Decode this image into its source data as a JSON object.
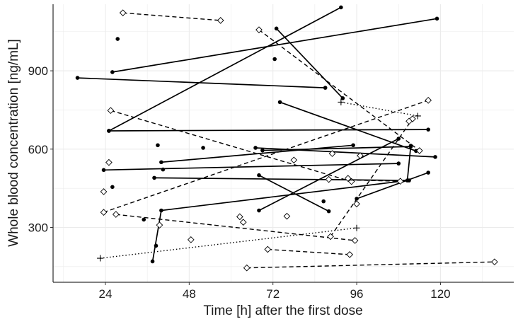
{
  "chart_data": {
    "type": "line",
    "title": "",
    "xlabel": "Time [h] after the first dose",
    "ylabel": "Whole blood concentration [ng/mL]",
    "xlim": [
      9,
      141
    ],
    "ylim": [
      90,
      1155
    ],
    "x_ticks": [
      24,
      48,
      72,
      96,
      120
    ],
    "x_tick_labels": [
      "24",
      "48",
      "72",
      "96",
      "120"
    ],
    "y_ticks": [
      300,
      600,
      900
    ],
    "y_tick_labels": [
      "300",
      "600",
      "900"
    ],
    "grid": true,
    "legend": "none",
    "colors": {
      "ink": "#000000",
      "grid": "#ebebeb",
      "panel": "#ffffff"
    },
    "series": [
      {
        "marker": "dot",
        "line": "solid",
        "x": [
          25,
          116.5
        ],
        "y": [
          670,
          675
        ]
      },
      {
        "marker": "dot",
        "line": "solid",
        "x": [
          25,
          91.5
        ],
        "y": [
          670,
          1143
        ]
      },
      {
        "marker": "dot",
        "line": "solid",
        "x": [
          26,
          119
        ],
        "y": [
          895,
          1100
        ]
      },
      {
        "marker": "dot",
        "line": "solid",
        "x": [
          16,
          87
        ],
        "y": [
          873,
          835
        ]
      },
      {
        "marker": "dot",
        "line": "solid",
        "x": [
          23.5,
          108
        ],
        "y": [
          520,
          545
        ]
      },
      {
        "marker": "dot",
        "line": "solid",
        "x": [
          40,
          95
        ],
        "y": [
          550,
          615
        ]
      },
      {
        "marker": "dot",
        "line": "solid",
        "x": [
          38,
          111
        ],
        "y": [
          490,
          480
        ]
      },
      {
        "marker": "dot",
        "line": "solid",
        "x": [
          37.5,
          40,
          110.5,
          111.5
        ],
        "y": [
          170,
          365,
          480,
          613
        ]
      },
      {
        "marker": "dot",
        "line": "solid",
        "x": [
          67,
          118.5
        ],
        "y": [
          605,
          570
        ]
      },
      {
        "marker": "dot",
        "line": "solid",
        "x": [
          69,
          111.5
        ],
        "y": [
          595,
          610
        ]
      },
      {
        "marker": "dot",
        "line": "solid",
        "x": [
          68,
          88
        ],
        "y": [
          500,
          362
        ]
      },
      {
        "marker": "dot",
        "line": "solid",
        "x": [
          68,
          108
        ],
        "y": [
          365,
          640
        ]
      },
      {
        "marker": "dot",
        "line": "solid",
        "x": [
          96,
          116.5
        ],
        "y": [
          410,
          510
        ]
      },
      {
        "marker": "dot",
        "line": "solid",
        "x": [
          74,
          113
        ],
        "y": [
          780,
          593
        ]
      },
      {
        "marker": "dot",
        "line": "solid",
        "x": [
          73,
          92
        ],
        "y": [
          1062,
          795
        ]
      },
      {
        "marker": "dot",
        "line": "none",
        "x": [
          26,
          27.5,
          39,
          40.5,
          52,
          35,
          38.5,
          72.5,
          86.5
        ],
        "y": [
          455,
          1022,
          615,
          522,
          605,
          330,
          230,
          945,
          400
        ]
      },
      {
        "marker": "diamond",
        "line": "dashed",
        "x": [
          29,
          57
        ],
        "y": [
          1122,
          1093
        ]
      },
      {
        "marker": "diamond",
        "line": "dashed",
        "x": [
          68,
          114
        ],
        "y": [
          1057,
          594
        ]
      },
      {
        "marker": "diamond",
        "line": "dashed",
        "x": [
          25.5,
          94.5
        ],
        "y": [
          748,
          476
        ]
      },
      {
        "marker": "diamond",
        "line": "dashed",
        "x": [
          23.5,
          116.5
        ],
        "y": [
          358,
          787
        ]
      },
      {
        "marker": "diamond",
        "line": "dashed",
        "x": [
          27,
          95.5
        ],
        "y": [
          350,
          250
        ]
      },
      {
        "marker": "diamond",
        "line": "dashed",
        "x": [
          70.5,
          94
        ],
        "y": [
          216,
          196
        ]
      },
      {
        "marker": "diamond",
        "line": "dashed",
        "x": [
          64.5,
          135.5
        ],
        "y": [
          145,
          168
        ]
      },
      {
        "marker": "diamond",
        "line": "dashed",
        "x": [
          88.5,
          112
        ],
        "y": [
          265,
          716
        ]
      },
      {
        "marker": "diamond",
        "line": "dashed",
        "x": [
          88,
          108.5
        ],
        "y": [
          484,
          477
        ]
      },
      {
        "marker": "diamond",
        "line": "none",
        "x": [
          23.5,
          25,
          39.5,
          48.5,
          62.5,
          63.5,
          76,
          78,
          89,
          93.5,
          96,
          97,
          111
        ],
        "y": [
          437,
          549,
          309,
          253,
          341,
          320,
          343,
          558,
          583,
          488,
          390,
          575,
          707
        ]
      },
      {
        "marker": "plus",
        "line": "dotted",
        "x": [
          22.5,
          96
        ],
        "y": [
          182,
          298
        ]
      },
      {
        "marker": "plus",
        "line": "dotted",
        "x": [
          91.5,
          113.5
        ],
        "y": [
          780,
          727
        ]
      }
    ]
  }
}
